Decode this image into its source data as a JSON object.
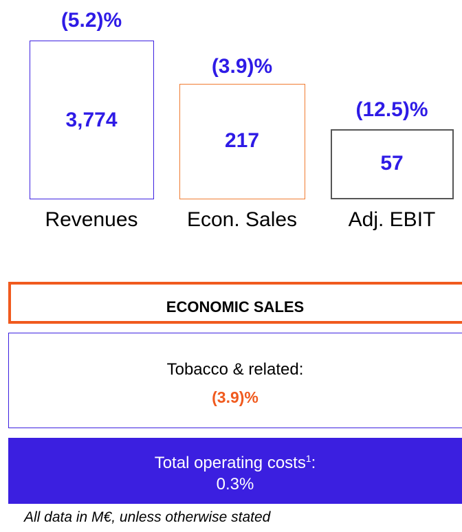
{
  "kpis": [
    {
      "change": "(5.2)%",
      "value": "3,774",
      "label": "Revenues"
    },
    {
      "change": "(3.9)%",
      "value": "217",
      "label": "Econ. Sales"
    },
    {
      "change": "(12.5)%",
      "value": "57",
      "label": "Adj. EBIT"
    }
  ],
  "economic_sales": {
    "title": "ECONOMIC SALES",
    "item": "Tobacco & related:",
    "item_value": "(3.9)%"
  },
  "costs": {
    "label": "Total operating costs",
    "footnote": "1",
    "label_end": ":",
    "value": "0.3%"
  },
  "footer": "All data in M€, unless otherwise stated"
}
